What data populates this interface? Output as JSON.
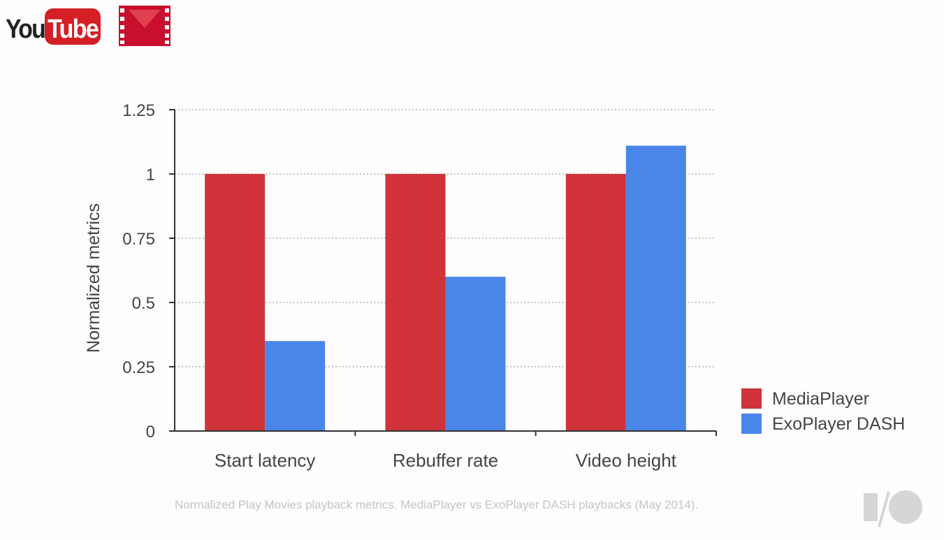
{
  "logos": {
    "youtube": "YouTube",
    "play_movies_icon": "play-movies-icon",
    "io_icon": "io-logo-icon"
  },
  "caption": "Normalized Play Movies playback metrics. MediaPlayer vs ExoPlayer DASH playbacks (May 2014).",
  "colors": {
    "MediaPlayer": "#d0333a",
    "ExoPlayer DASH": "#4a86e8",
    "axis": "#333333",
    "grid": "#b0b0b0",
    "text": "#444444"
  },
  "chart_data": {
    "type": "bar",
    "categories": [
      "Start latency",
      "Rebuffer rate",
      "Video height"
    ],
    "series": [
      {
        "name": "MediaPlayer",
        "values": [
          1,
          1,
          1
        ]
      },
      {
        "name": "ExoPlayer DASH",
        "values": [
          0.35,
          0.6,
          1.11
        ]
      }
    ],
    "title": "",
    "xlabel": "",
    "ylabel": "Normalized metrics",
    "ylim": [
      0,
      1.25
    ],
    "yticks": [
      "0",
      "0.25",
      "0.5",
      "0.75",
      "1",
      "1.25"
    ],
    "grid": true,
    "legend": "bottom-right"
  }
}
